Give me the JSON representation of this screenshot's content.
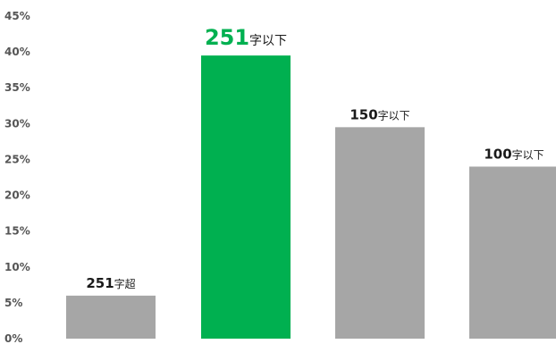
{
  "chart_data": {
    "type": "bar",
    "categories": [
      "251字超",
      "251字以下",
      "150字以下",
      "100字以下"
    ],
    "values": [
      6,
      39.5,
      29.5,
      24
    ],
    "data_labels": [
      {
        "number": "251",
        "suffix": "字超",
        "highlight": false
      },
      {
        "number": "251",
        "suffix": "字以下",
        "highlight": true
      },
      {
        "number": "150",
        "suffix": "字以下",
        "highlight": false
      },
      {
        "number": "100",
        "suffix": "字以下",
        "highlight": false
      }
    ],
    "y_ticks": [
      "0%",
      "5%",
      "10%",
      "15%",
      "20%",
      "25%",
      "30%",
      "35%",
      "40%",
      "45%"
    ],
    "ylim": [
      0,
      45
    ],
    "grid": false,
    "legend": "none",
    "colors": {
      "default_bar": "#a6a6a6",
      "highlight_bar": "#00b050",
      "label_text": "#1a1a1a",
      "highlight_text": "#00b050",
      "tick_text": "#555555"
    }
  }
}
